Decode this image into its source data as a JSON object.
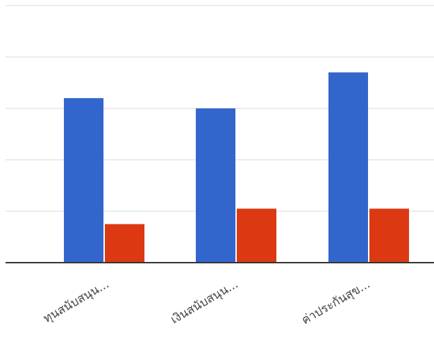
{
  "chart_data": {
    "type": "bar",
    "categories": [
      "ทุนสนับสนุน...",
      "เงินสนับสนุน...",
      "ค่าประกันสุข..."
    ],
    "series": [
      {
        "values": [
          3.2,
          3.0,
          3.7
        ]
      },
      {
        "values": [
          0.75,
          1.05,
          1.05
        ]
      }
    ],
    "ylim": [
      0,
      5
    ],
    "grid": true,
    "legend": "none",
    "colors": {
      "series_0": "#3366cc",
      "series_1": "#dc3912",
      "grid": "#d9d9d9",
      "baseline": "#333333"
    }
  }
}
